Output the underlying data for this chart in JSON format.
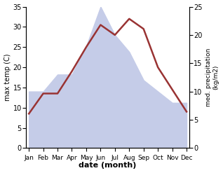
{
  "months": [
    "Jan",
    "Feb",
    "Mar",
    "Apr",
    "May",
    "Jun",
    "Jul",
    "Aug",
    "Sep",
    "Oct",
    "Nov",
    "Dec"
  ],
  "temperature": [
    8.5,
    13.5,
    13.5,
    19.0,
    25.0,
    30.5,
    28.0,
    32.0,
    29.5,
    20.0,
    14.5,
    9.0
  ],
  "precipitation": [
    10.0,
    10.0,
    13.0,
    13.0,
    18.0,
    25.0,
    20.0,
    17.0,
    12.0,
    10.0,
    8.0,
    8.0
  ],
  "temp_color": "#993333",
  "precip_fill_color": "#c5cce8",
  "ylabel_left": "max temp (C)",
  "ylabel_right": "med. precipitation\n(kg/m2)",
  "xlabel": "date (month)",
  "ylim_left": [
    0,
    35
  ],
  "ylim_right": [
    0,
    25
  ],
  "yticks_left": [
    0,
    5,
    10,
    15,
    20,
    25,
    30,
    35
  ],
  "yticks_right": [
    0,
    5,
    10,
    15,
    20,
    25
  ],
  "bg_color": "#ffffff",
  "line_width": 1.8
}
